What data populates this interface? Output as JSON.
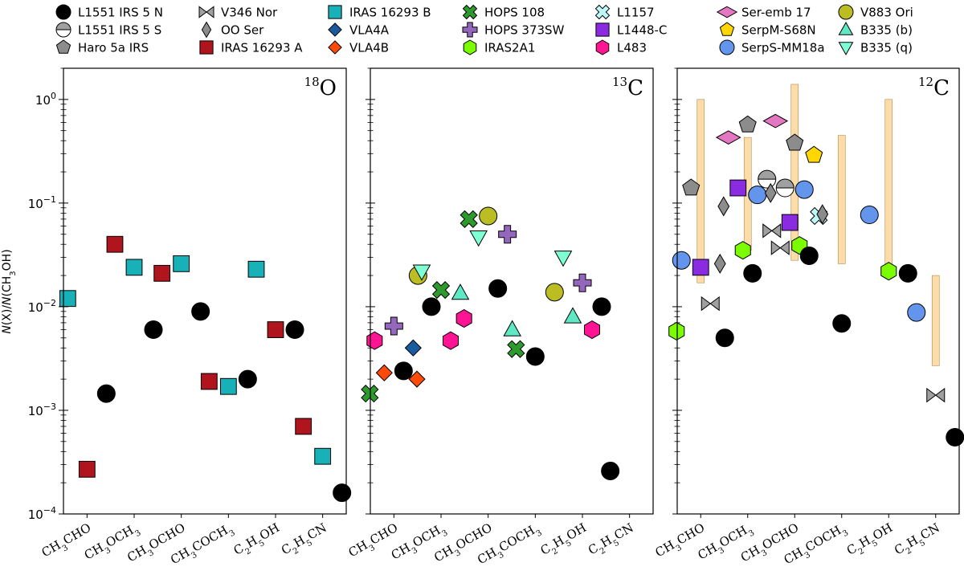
{
  "chart_data": {
    "type": "scatter",
    "y_scale": "log",
    "ylim": [
      0.0001,
      2.0
    ],
    "ylabel": {
      "prefix_italic": "N",
      "mid": "(X)/",
      "mid_italic": "N",
      "suffix": "(CH",
      "sub": "3",
      "end": "OH)"
    },
    "y_ticks": [
      {
        "value": 0.0001,
        "base": "10",
        "exp": "−4"
      },
      {
        "value": 0.001,
        "base": "10",
        "exp": "−3"
      },
      {
        "value": 0.01,
        "base": "10",
        "exp": "−2"
      },
      {
        "value": 0.1,
        "base": "10",
        "exp": "−1"
      },
      {
        "value": 1,
        "base": "10",
        "exp": "0"
      }
    ],
    "categories": [
      {
        "parts": [
          [
            "CH",
            ""
          ],
          [
            "3",
            "sub"
          ],
          [
            "CHO",
            ""
          ]
        ]
      },
      {
        "parts": [
          [
            "CH",
            ""
          ],
          [
            "3",
            "sub"
          ],
          [
            "OCH",
            ""
          ],
          [
            "3",
            "sub"
          ]
        ]
      },
      {
        "parts": [
          [
            "CH",
            ""
          ],
          [
            "3",
            "sub"
          ],
          [
            "OCHO",
            ""
          ]
        ]
      },
      {
        "parts": [
          [
            "CH",
            ""
          ],
          [
            "3",
            "sub"
          ],
          [
            "COCH",
            ""
          ],
          [
            "3",
            "sub"
          ]
        ]
      },
      {
        "parts": [
          [
            "C",
            ""
          ],
          [
            "2",
            "sub"
          ],
          [
            "H",
            ""
          ],
          [
            "5",
            "sub"
          ],
          [
            "OH",
            ""
          ]
        ]
      },
      {
        "parts": [
          [
            "C",
            ""
          ],
          [
            "2",
            "sub"
          ],
          [
            "H",
            ""
          ],
          [
            "5",
            "sub"
          ],
          [
            "CN",
            ""
          ]
        ]
      }
    ],
    "series_styles": [
      {
        "name": "L1551 IRS 5 N",
        "marker": "circle",
        "color": "#000000"
      },
      {
        "name": "L1551 IRS 5 S",
        "marker": "halfcircle",
        "color": "#ffffff",
        "color2": "#a0a0a0"
      },
      {
        "name": "Haro 5a IRS",
        "marker": "pentagon",
        "color": "#8c8c8c"
      },
      {
        "name": "V346 Nor",
        "marker": "bowtie",
        "color": "#a0a0a0"
      },
      {
        "name": "OO Ser",
        "marker": "thindiamond",
        "color": "#8c8c8c"
      },
      {
        "name": "IRAS 16293 A",
        "marker": "square",
        "color": "#b0141c"
      },
      {
        "name": "IRAS 16293 B",
        "marker": "square",
        "color": "#17b1b7"
      },
      {
        "name": "VLA4A",
        "marker": "diamond",
        "color": "#1a5b9e"
      },
      {
        "name": "VLA4B",
        "marker": "diamond",
        "color": "#ff4a0a"
      },
      {
        "name": "HOPS 108",
        "marker": "x",
        "color": "#2e9a2e"
      },
      {
        "name": "HOPS 373SW",
        "marker": "plus",
        "color": "#9467bd"
      },
      {
        "name": "IRAS2A1",
        "marker": "hexagon",
        "color": "#7cfc00"
      },
      {
        "name": "L1157",
        "marker": "x",
        "color": "#bff8f8"
      },
      {
        "name": "L1448-C",
        "marker": "square",
        "color": "#8a2be2"
      },
      {
        "name": "L483",
        "marker": "hexagon",
        "color": "#ff1493"
      },
      {
        "name": "Ser-emb 17",
        "marker": "diamondwide",
        "color": "#e377c2"
      },
      {
        "name": "SerpM-S68N",
        "marker": "pentagon",
        "color": "#ffd700"
      },
      {
        "name": "SerpS-MM18a",
        "marker": "circle",
        "color": "#6495ed"
      },
      {
        "name": "V883 Ori",
        "marker": "circle",
        "color": "#bcbd22"
      },
      {
        "name": "B335 (b)",
        "marker": "triangle_up",
        "color": "#5fe8c4"
      },
      {
        "name": "B335 (q)",
        "marker": "triangle_down",
        "color": "#7fffd4"
      }
    ],
    "legend_location": "top",
    "panels": [
      {
        "label_sup": "18",
        "label_main": "O",
        "points": [
          {
            "s": "IRAS 16293 B",
            "c": 0,
            "y": 0.012
          },
          {
            "s": "IRAS 16293 A",
            "c": 0,
            "y": 0.00027
          },
          {
            "s": "L1551 IRS 5 N",
            "c": 0,
            "y": 0.00145
          },
          {
            "s": "IRAS 16293 A",
            "c": 1,
            "y": 0.04
          },
          {
            "s": "IRAS 16293 B",
            "c": 1,
            "y": 0.024
          },
          {
            "s": "L1551 IRS 5 N",
            "c": 1,
            "y": 0.006
          },
          {
            "s": "IRAS 16293 A",
            "c": 2,
            "y": 0.021
          },
          {
            "s": "IRAS 16293 B",
            "c": 2,
            "y": 0.026
          },
          {
            "s": "L1551 IRS 5 N",
            "c": 2,
            "y": 0.009
          },
          {
            "s": "IRAS 16293 A",
            "c": 3,
            "y": 0.0019
          },
          {
            "s": "IRAS 16293 B",
            "c": 3,
            "y": 0.0017
          },
          {
            "s": "L1551 IRS 5 N",
            "c": 3,
            "y": 0.002
          },
          {
            "s": "IRAS 16293 B",
            "c": 4,
            "y": 0.023
          },
          {
            "s": "IRAS 16293 A",
            "c": 4,
            "y": 0.006
          },
          {
            "s": "L1551 IRS 5 N",
            "c": 4,
            "y": 0.006
          },
          {
            "s": "IRAS 16293 A",
            "c": 5,
            "y": 0.0007
          },
          {
            "s": "IRAS 16293 B",
            "c": 5,
            "y": 0.00036
          },
          {
            "s": "L1551 IRS 5 N",
            "c": 5,
            "y": 0.00016
          }
        ],
        "ranges": []
      },
      {
        "label_sup": "13",
        "label_main": "C",
        "points": [
          {
            "s": "L483",
            "c": 0,
            "y": 0.0047
          },
          {
            "s": "HOPS 373SW",
            "c": 0,
            "y": 0.0065
          },
          {
            "s": "VLA4A",
            "c": 0,
            "y": 0.004
          },
          {
            "s": "VLA4B",
            "c": 0,
            "y": 0.0023
          },
          {
            "s": "L1551 IRS 5 N",
            "c": 0,
            "y": 0.0024
          },
          {
            "s": "HOPS 108",
            "c": 0,
            "y": 0.00145
          },
          {
            "s": "V883 Ori",
            "c": 0,
            "y": 0.02
          },
          {
            "s": "B335 (q)",
            "c": 1,
            "y": 0.022
          },
          {
            "s": "HOPS 108",
            "c": 1,
            "y": 0.0145
          },
          {
            "s": "B335 (b)",
            "c": 1,
            "y": 0.0135
          },
          {
            "s": "L1551 IRS 5 N",
            "c": 1,
            "y": 0.01
          },
          {
            "s": "L483",
            "c": 1,
            "y": 0.0047
          },
          {
            "s": "VLA4B",
            "c": 1,
            "y": 0.002
          },
          {
            "s": "HOPS 108",
            "c": 2,
            "y": 0.07
          },
          {
            "s": "V883 Ori",
            "c": 2,
            "y": 0.075
          },
          {
            "s": "HOPS 373SW",
            "c": 2,
            "y": 0.05
          },
          {
            "s": "B335 (q)",
            "c": 2,
            "y": 0.047
          },
          {
            "s": "L1551 IRS 5 N",
            "c": 2,
            "y": 0.015
          },
          {
            "s": "L483",
            "c": 2,
            "y": 0.0077
          },
          {
            "s": "B335 (b)",
            "c": 2,
            "y": 0.006
          },
          {
            "s": "HOPS 108",
            "c": 3,
            "y": 0.0039
          },
          {
            "s": "L1551 IRS 5 N",
            "c": 3,
            "y": 0.0033
          },
          {
            "s": "V883 Ori",
            "c": 3,
            "y": 0.0138
          },
          {
            "s": "B335 (q)",
            "c": 4,
            "y": 0.03
          },
          {
            "s": "HOPS 373SW",
            "c": 4,
            "y": 0.017
          },
          {
            "s": "L1551 IRS 5 N",
            "c": 4,
            "y": 0.01
          },
          {
            "s": "B335 (b)",
            "c": 4,
            "y": 0.008
          },
          {
            "s": "L483",
            "c": 4,
            "y": 0.006
          },
          {
            "s": "L1551 IRS 5 N",
            "c": 5,
            "y": 0.00026
          }
        ],
        "ranges": []
      },
      {
        "label_sup": "12",
        "label_main": "C",
        "points": [
          {
            "s": "SerpS-MM18a",
            "c": 0,
            "y": 0.028
          },
          {
            "s": "L1448-C",
            "c": 0,
            "y": 0.024
          },
          {
            "s": "OO Ser",
            "c": 0,
            "y": 0.026
          },
          {
            "s": "Haro 5a IRS",
            "c": 0,
            "y": 0.14
          },
          {
            "s": "V346 Nor",
            "c": 0,
            "y": 0.0107
          },
          {
            "s": "IRAS2A1",
            "c": 0,
            "y": 0.0058
          },
          {
            "s": "L1551 IRS 5 N",
            "c": 0,
            "y": 0.005
          },
          {
            "s": "Ser-emb 17",
            "c": 1,
            "y": 0.43
          },
          {
            "s": "Haro 5a IRS",
            "c": 1,
            "y": 0.57
          },
          {
            "s": "L1551 IRS 5 S",
            "c": 1,
            "y": 0.17
          },
          {
            "s": "L1448-C",
            "c": 1,
            "y": 0.14
          },
          {
            "s": "SerpS-MM18a",
            "c": 1,
            "y": 0.12
          },
          {
            "s": "OO Ser",
            "c": 1,
            "y": 0.093
          },
          {
            "s": "V346 Nor",
            "c": 1,
            "y": 0.054
          },
          {
            "s": "IRAS2A1",
            "c": 1,
            "y": 0.035
          },
          {
            "s": "L1551 IRS 5 N",
            "c": 1,
            "y": 0.021
          },
          {
            "s": "Ser-emb 17",
            "c": 2,
            "y": 0.62
          },
          {
            "s": "Haro 5a IRS",
            "c": 2,
            "y": 0.38
          },
          {
            "s": "SerpM-S68N",
            "c": 2,
            "y": 0.29
          },
          {
            "s": "L1551 IRS 5 S",
            "c": 2,
            "y": 0.14
          },
          {
            "s": "SerpS-MM18a",
            "c": 2,
            "y": 0.135
          },
          {
            "s": "OO Ser",
            "c": 2,
            "y": 0.125
          },
          {
            "s": "L1157",
            "c": 2,
            "y": 0.075
          },
          {
            "s": "L1448-C",
            "c": 2,
            "y": 0.065
          },
          {
            "s": "IRAS2A1",
            "c": 2,
            "y": 0.039
          },
          {
            "s": "V346 Nor",
            "c": 2,
            "y": 0.037
          },
          {
            "s": "L1551 IRS 5 N",
            "c": 2,
            "y": 0.031
          },
          {
            "s": "OO Ser",
            "c": 3,
            "y": 0.078
          },
          {
            "s": "L1551 IRS 5 N",
            "c": 3,
            "y": 0.0069
          },
          {
            "s": "SerpS-MM18a",
            "c": 4,
            "y": 0.077
          },
          {
            "s": "IRAS2A1",
            "c": 4,
            "y": 0.022
          },
          {
            "s": "L1551 IRS 5 N",
            "c": 4,
            "y": 0.021
          },
          {
            "s": "SerpS-MM18a",
            "c": 5,
            "y": 0.0088
          },
          {
            "s": "V346 Nor",
            "c": 5,
            "y": 0.0014
          },
          {
            "s": "L1551 IRS 5 N",
            "c": 5,
            "y": 0.00055
          }
        ],
        "ranges": [
          {
            "c": 0,
            "low": 0.017,
            "high": 1.0
          },
          {
            "c": 1,
            "low": 0.035,
            "high": 0.43
          },
          {
            "c": 2,
            "low": 0.028,
            "high": 1.4
          },
          {
            "c": 3,
            "low": 0.026,
            "high": 0.45
          },
          {
            "c": 4,
            "low": 0.022,
            "high": 1.0
          },
          {
            "c": 5,
            "low": 0.0027,
            "high": 0.02
          }
        ],
        "range_color": "#fddcaa",
        "range_edge": "#b08a50"
      }
    ]
  }
}
